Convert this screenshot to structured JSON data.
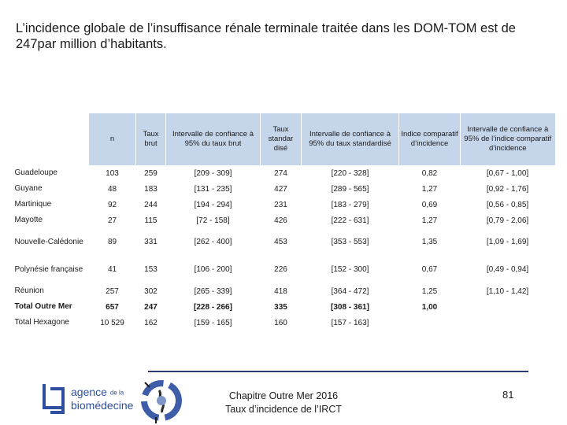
{
  "slide": {
    "title": "L’incidence globale de l’insuffisance rénale terminale traitée dans les DOM-TOM est de 247par million d’habitants."
  },
  "table": {
    "headers": [
      "",
      "n",
      "Taux brut",
      "Intervalle de confiance à 95% du taux brut",
      "Taux standar disé",
      "Intervalle de confiance à 95% du taux standardisé",
      "Indice comparatif d’incidence",
      "Intervalle de confiance à 95% de l’indice comparatif d’incidence"
    ],
    "rows": [
      [
        "Guadeloupe",
        "103",
        "259",
        "[209 - 309]",
        "274",
        "[220 - 328]",
        "0,82",
        "[0,67 - 1,00]"
      ],
      [
        "Guyane",
        "48",
        "183",
        "[131 - 235]",
        "427",
        "[289 - 565]",
        "1,27",
        "[0,92 - 1,76]"
      ],
      [
        "Martinique",
        "92",
        "244",
        "[194 - 294]",
        "231",
        "[183 - 279]",
        "0,69",
        "[0,56 - 0,85]"
      ],
      [
        "Mayotte",
        "27",
        "115",
        "[72 - 158]",
        "426",
        "[222 - 631]",
        "1,27",
        "[0,79 - 2,06]"
      ],
      [
        "Nouvelle-Calédonie",
        "89",
        "331",
        "[262 - 400]",
        "453",
        "[353 - 553]",
        "1,35",
        "[1,09 - 1,69]"
      ],
      [
        "Polynésie française",
        "41",
        "153",
        "[106 - 200]",
        "226",
        "[152 - 300]",
        "0,67",
        "[0,49 - 0,94]"
      ],
      [
        "Réunion",
        "257",
        "302",
        "[265 - 339]",
        "418",
        "[364 - 472]",
        "1,25",
        "[1,10 - 1,42]"
      ],
      [
        "Total Outre Mer",
        "657",
        "247",
        "[228 - 266]",
        "335",
        "[308 - 361]",
        "1,00",
        ""
      ],
      [
        "Total Hexagone",
        "10 529",
        "162",
        "[159 - 165]",
        "160",
        "[157 - 163]",
        "",
        ""
      ]
    ]
  },
  "footer": {
    "logo_line1": "agence",
    "logo_de_la": "de la",
    "logo_line2": "biomédecine",
    "chapter": "Chapitre Outre Mer 2016",
    "subtitle": "Taux d’incidence de l’IRCT",
    "page_number": "81"
  },
  "colors": {
    "header_fill": "#c5d5ea",
    "divider": "#303870",
    "logo_blue": "#2e4fa0",
    "emblem_blue": "#3d5da8"
  },
  "icons": {
    "logo_mark": "agence-logo-mark",
    "emblem": "dom-tom-emblem"
  }
}
